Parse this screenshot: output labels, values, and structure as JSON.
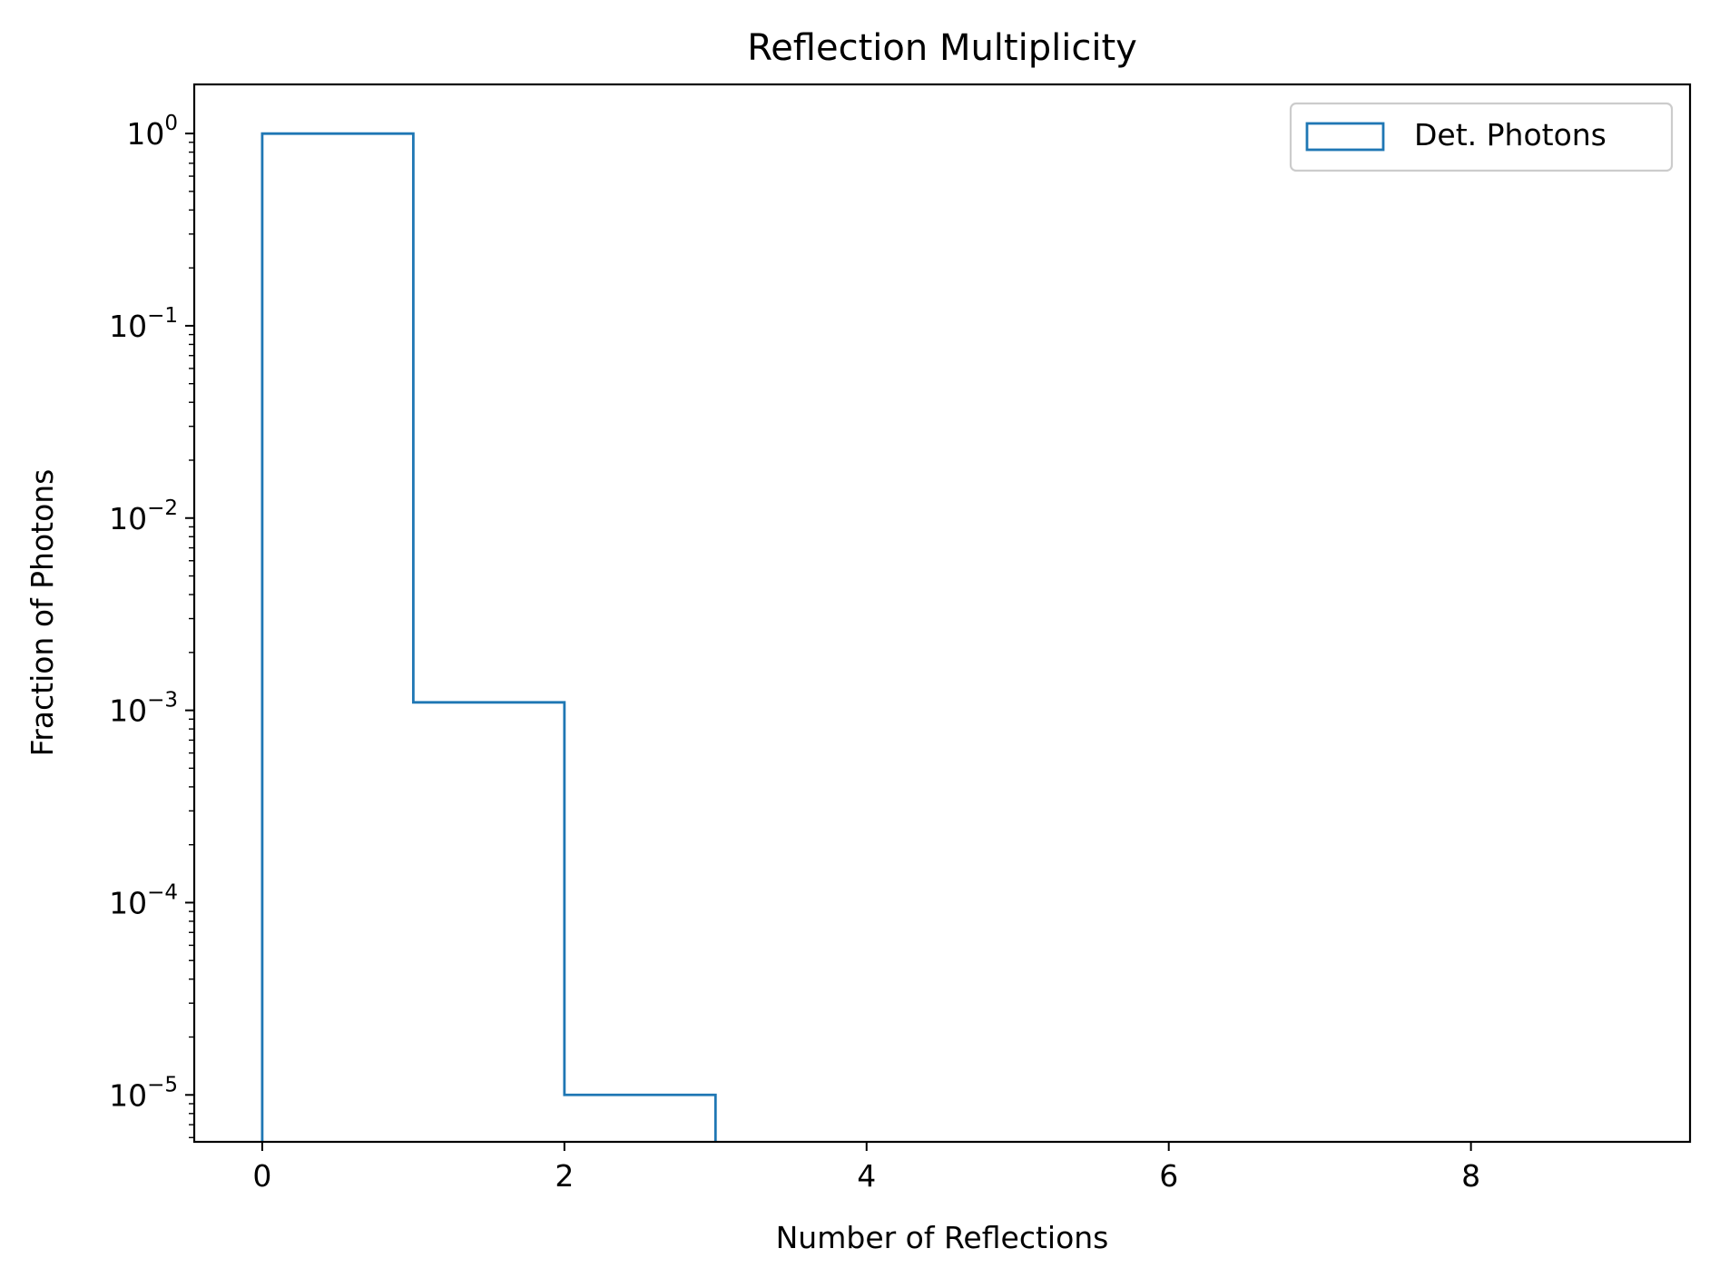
{
  "chart_data": {
    "type": "histogram",
    "title": "Reflection Multiplicity",
    "xlabel": "Number of Reflections",
    "ylabel": "Fraction of Photons",
    "yscale": "log",
    "histtype": "step",
    "color": "#1f77b4",
    "series": [
      {
        "name": "Det. Photons",
        "bin_edges": [
          0,
          1,
          2,
          3,
          4,
          5,
          6,
          7,
          8,
          9
        ],
        "values": [
          0.9989,
          0.0011,
          1e-05,
          0,
          0,
          0,
          0,
          0,
          0
        ]
      }
    ],
    "xlim": [
      -0.45,
      9.45
    ],
    "ylim": [
      5.7e-06,
      1.8
    ],
    "x_ticks": [
      {
        "value": 0,
        "label": "0"
      },
      {
        "value": 2,
        "label": "2"
      },
      {
        "value": 4,
        "label": "4"
      },
      {
        "value": 6,
        "label": "6"
      },
      {
        "value": 8,
        "label": "8"
      }
    ],
    "y_ticks": [
      {
        "value": 1,
        "base": "10",
        "exp": "0"
      },
      {
        "value": 0.1,
        "base": "10",
        "exp": "−1"
      },
      {
        "value": 0.01,
        "base": "10",
        "exp": "−2"
      },
      {
        "value": 0.001,
        "base": "10",
        "exp": "−3"
      },
      {
        "value": 0.0001,
        "base": "10",
        "exp": "−4"
      },
      {
        "value": 1e-05,
        "base": "10",
        "exp": "−5"
      }
    ],
    "legend": {
      "position": "top-right",
      "entries": [
        "Det. Photons"
      ]
    },
    "grid": false
  }
}
